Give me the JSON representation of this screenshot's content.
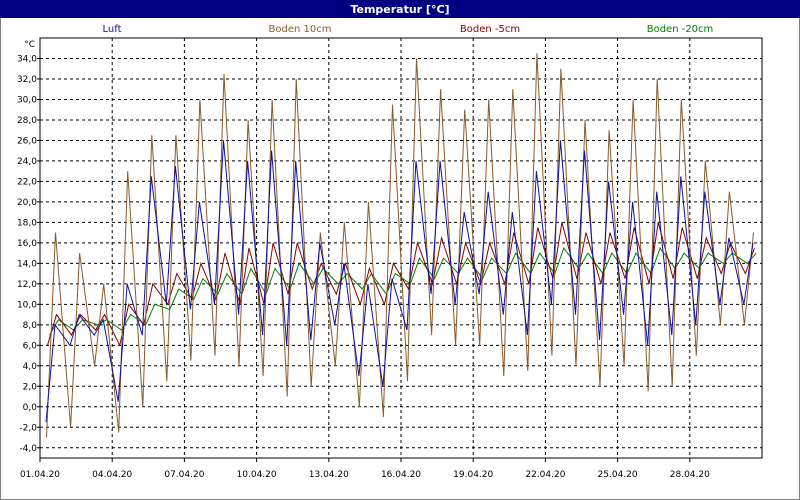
{
  "window": {
    "title": "Temperatur [°C]"
  },
  "colors": {
    "title_bg": "#000080",
    "grid": "#000000",
    "luft": "#1010a0",
    "boden10": "#8b5a2b",
    "boden5": "#8b0000",
    "boden20": "#008000"
  },
  "chart_data": {
    "type": "line",
    "title": "Temperatur [°C]",
    "ylabel": "°C",
    "ylim": [
      -5,
      36
    ],
    "yticks": [
      -4,
      -2,
      0,
      2,
      4,
      6,
      8,
      10,
      12,
      14,
      16,
      18,
      20,
      22,
      24,
      26,
      28,
      30,
      32,
      34
    ],
    "ytick_labels": [
      "-4,0",
      "-2,0",
      "0,0",
      "2,0",
      "4,0",
      "6,0",
      "8,0",
      "10,0",
      "12,0",
      "14,0",
      "16,0",
      "18,0",
      "20,0",
      "22,0",
      "24,0",
      "26,0",
      "28,0",
      "30,0",
      "32,0",
      "34,0"
    ],
    "xlim": [
      1,
      31
    ],
    "xticks": [
      1,
      4,
      7,
      10,
      13,
      16,
      19,
      22,
      25,
      28
    ],
    "xtick_labels": [
      "01.04.20",
      "04.04.20",
      "07.04.20",
      "10.04.20",
      "13.04.20",
      "16.04.20",
      "19.04.20",
      "22.04.20",
      "25.04.20",
      "28.04.20"
    ],
    "grid": true,
    "legend_position": "top",
    "days": [
      1,
      2,
      3,
      4,
      5,
      6,
      7,
      8,
      9,
      10,
      11,
      12,
      13,
      14,
      15,
      16,
      17,
      18,
      19,
      20,
      21,
      22,
      23,
      24,
      25,
      26,
      27,
      28,
      29,
      30
    ],
    "series": [
      {
        "name": "Luft",
        "color": "#1010a0",
        "daily_min": [
          -1.5,
          6.0,
          7.0,
          0.5,
          7.0,
          10.0,
          9.5,
          10.0,
          9.0,
          7.0,
          6.0,
          6.5,
          8.0,
          3.0,
          2.0,
          7.5,
          11.0,
          10.0,
          11.0,
          9.0,
          7.0,
          10.0,
          9.0,
          6.5,
          9.0,
          6.0,
          7.0,
          8.0,
          10.0,
          10.0
        ],
        "daily_max": [
          8.0,
          9.0,
          8.5,
          12.0,
          22.5,
          23.5,
          20.0,
          26.0,
          24.0,
          25.0,
          24.0,
          16.0,
          14.0,
          12.0,
          12.5,
          24.0,
          24.0,
          19.0,
          21.0,
          19.0,
          23.0,
          26.0,
          25.0,
          22.0,
          20.0,
          21.0,
          22.5,
          21.0,
          16.5,
          16.0
        ]
      },
      {
        "name": "Boden 10cm",
        "color": "#8b5a2b",
        "daily_min": [
          -3.0,
          -2.0,
          4.0,
          -2.5,
          0.0,
          2.5,
          4.5,
          5.0,
          4.0,
          3.0,
          1.0,
          2.0,
          4.0,
          0.0,
          -1.0,
          2.5,
          7.0,
          6.0,
          6.0,
          3.0,
          3.5,
          5.0,
          4.0,
          2.0,
          4.0,
          1.5,
          2.0,
          5.0,
          8.0,
          8.0
        ],
        "daily_max": [
          17.0,
          15.0,
          12.0,
          23.0,
          26.5,
          26.5,
          30.0,
          32.5,
          28.0,
          30.0,
          32.0,
          17.0,
          18.0,
          20.0,
          29.5,
          34.0,
          31.0,
          29.0,
          30.0,
          31.0,
          34.5,
          33.0,
          28.0,
          27.0,
          30.0,
          32.0,
          30.0,
          24.0,
          21.0,
          17.0
        ]
      },
      {
        "name": "Boden -5cm",
        "color": "#8b0000",
        "daily_min": [
          6.0,
          7.0,
          7.5,
          6.0,
          8.0,
          10.0,
          10.5,
          10.5,
          10.0,
          10.0,
          11.0,
          11.5,
          11.0,
          10.0,
          10.0,
          11.5,
          12.0,
          12.0,
          12.0,
          12.0,
          12.0,
          12.5,
          12.5,
          12.0,
          12.5,
          12.0,
          12.5,
          12.5,
          13.0,
          13.0
        ],
        "daily_max": [
          9.0,
          9.0,
          9.0,
          10.0,
          12.0,
          13.0,
          14.0,
          15.0,
          15.5,
          16.0,
          16.0,
          14.0,
          14.0,
          13.5,
          14.0,
          16.0,
          16.5,
          16.0,
          16.0,
          17.0,
          17.5,
          18.0,
          17.0,
          17.0,
          17.5,
          18.0,
          17.5,
          16.5,
          16.0,
          15.5
        ]
      },
      {
        "name": "Boden -20cm",
        "color": "#008000",
        "daily_min": [
          7.0,
          7.5,
          8.0,
          7.5,
          8.0,
          9.5,
          10.5,
          11.0,
          11.0,
          11.0,
          11.5,
          12.0,
          12.0,
          11.5,
          11.0,
          12.0,
          12.5,
          13.0,
          12.5,
          13.0,
          13.0,
          13.0,
          13.5,
          13.0,
          13.0,
          13.0,
          13.5,
          13.5,
          14.0,
          14.0
        ],
        "daily_max": [
          8.5,
          8.5,
          8.5,
          9.0,
          10.0,
          11.5,
          12.5,
          13.0,
          13.5,
          13.5,
          14.0,
          13.5,
          13.0,
          13.0,
          13.0,
          14.5,
          14.5,
          14.5,
          14.5,
          15.0,
          15.0,
          15.5,
          15.0,
          15.0,
          15.0,
          15.5,
          15.0,
          15.0,
          15.0,
          15.0
        ]
      }
    ]
  }
}
